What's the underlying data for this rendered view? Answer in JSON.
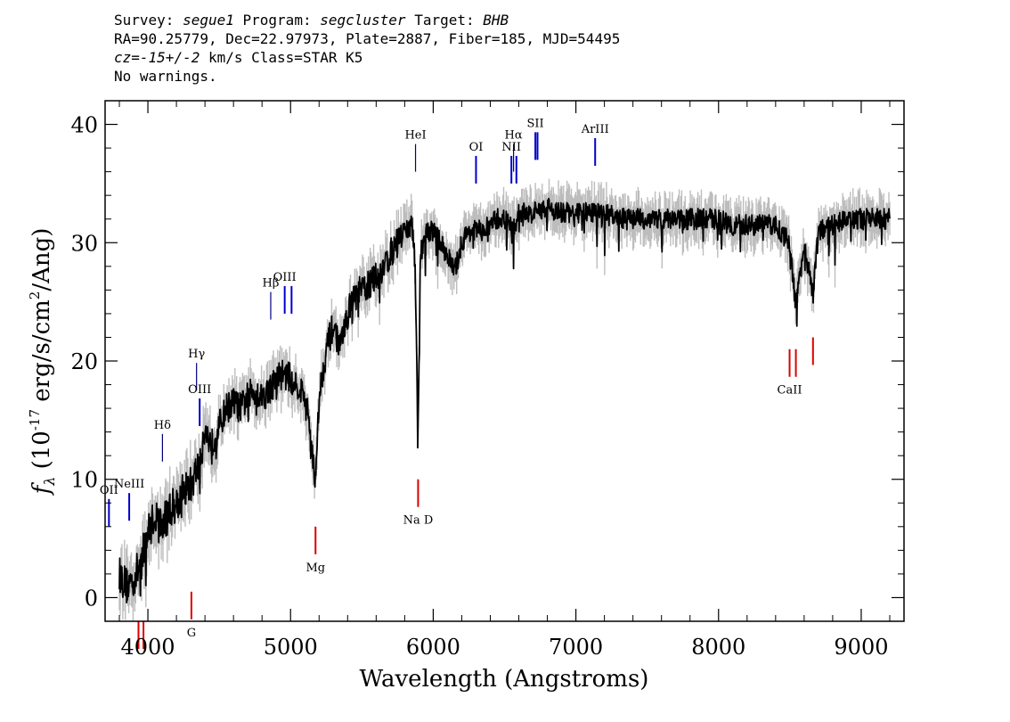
{
  "header": {
    "survey_label": "Survey:",
    "survey": "segue1",
    "program_label": "Program:",
    "program": "segcluster",
    "target_label": "Target:",
    "target": "BHB",
    "line2": "RA=90.25779, Dec=22.97973, Plate=2887, Fiber=185, MJD=54495",
    "cz": "cz=",
    "cz_value": "-15+/-2",
    "cz_rest": " km/s Class=STAR K5",
    "line4": "No warnings."
  },
  "chart_data": {
    "type": "line",
    "xlabel": "Wavelength (Angstroms)",
    "ylabel": {
      "f": "f",
      "sub": "λ",
      "pre": " (10",
      "exp": "-17",
      "mid": " erg/s/cm",
      "exp2": "2",
      "post": "/Ang)"
    },
    "xlim": [
      3700,
      9300
    ],
    "ylim": [
      -2,
      42
    ],
    "xticks": [
      4000,
      5000,
      6000,
      7000,
      8000,
      9000
    ],
    "yticks": [
      0,
      10,
      20,
      30,
      40
    ],
    "colors": {
      "spectrum": "#000000",
      "error": "#bdbdbd",
      "emission": "#0000cc",
      "absorption": "#dd0000",
      "balmer": "#000080"
    },
    "series": [
      {
        "values": [
          [
            3800,
            2
          ],
          [
            3850,
            1
          ],
          [
            3900,
            1.5
          ],
          [
            3950,
            3
          ],
          [
            4000,
            5.5
          ],
          [
            4050,
            7
          ],
          [
            4100,
            6
          ],
          [
            4150,
            7.5
          ],
          [
            4200,
            8
          ],
          [
            4250,
            9
          ],
          [
            4300,
            9.5
          ],
          [
            4350,
            11
          ],
          [
            4400,
            14
          ],
          [
            4450,
            13
          ],
          [
            4500,
            14.5
          ],
          [
            4550,
            16
          ],
          [
            4600,
            16.5
          ],
          [
            4650,
            16
          ],
          [
            4700,
            17
          ],
          [
            4750,
            17.5
          ],
          [
            4800,
            17
          ],
          [
            4850,
            17.5
          ],
          [
            4900,
            18.5
          ],
          [
            4950,
            19
          ],
          [
            5000,
            18.5
          ],
          [
            5050,
            18
          ],
          [
            5100,
            17
          ],
          [
            5150,
            13
          ],
          [
            5175,
            9.5
          ],
          [
            5200,
            17
          ],
          [
            5250,
            21
          ],
          [
            5300,
            23
          ],
          [
            5350,
            21
          ],
          [
            5400,
            24
          ],
          [
            5450,
            25.5
          ],
          [
            5500,
            26
          ],
          [
            5550,
            26.5
          ],
          [
            5600,
            27
          ],
          [
            5650,
            28
          ],
          [
            5700,
            29
          ],
          [
            5750,
            30
          ],
          [
            5800,
            31
          ],
          [
            5850,
            31.5
          ],
          [
            5875,
            28
          ],
          [
            5893,
            13
          ],
          [
            5910,
            29
          ],
          [
            5950,
            31
          ],
          [
            6000,
            31
          ],
          [
            6050,
            30
          ],
          [
            6100,
            29
          ],
          [
            6150,
            27.5
          ],
          [
            6200,
            30
          ],
          [
            6250,
            31
          ],
          [
            6300,
            31
          ],
          [
            6350,
            31
          ],
          [
            6400,
            31.5
          ],
          [
            6450,
            32
          ],
          [
            6500,
            32
          ],
          [
            6563,
            31
          ],
          [
            6600,
            32.5
          ],
          [
            6700,
            32.5
          ],
          [
            6800,
            33
          ],
          [
            6900,
            32.5
          ],
          [
            7000,
            32.5
          ],
          [
            7100,
            32.5
          ],
          [
            7200,
            32.5
          ],
          [
            7300,
            32
          ],
          [
            7400,
            32
          ],
          [
            7500,
            32
          ],
          [
            7600,
            32
          ],
          [
            7700,
            32
          ],
          [
            7800,
            32
          ],
          [
            7900,
            32
          ],
          [
            8000,
            32
          ],
          [
            8100,
            31.5
          ],
          [
            8200,
            31.5
          ],
          [
            8300,
            31.5
          ],
          [
            8400,
            31.5
          ],
          [
            8498,
            30
          ],
          [
            8542,
            24.5
          ],
          [
            8600,
            30
          ],
          [
            8662,
            25.5
          ],
          [
            8700,
            31
          ],
          [
            8800,
            31.5
          ],
          [
            8900,
            32
          ],
          [
            9000,
            32
          ],
          [
            9100,
            32
          ],
          [
            9200,
            32
          ]
        ]
      }
    ],
    "emission_lines": [
      {
        "label": "OII",
        "wavelength": 3727,
        "y": 6
      },
      {
        "label": "NeIII",
        "wavelength": 3869,
        "y": 6.5
      },
      {
        "label": "Hδ",
        "wavelength": 4102,
        "y": 11.5
      },
      {
        "label": "Hγ",
        "wavelength": 4341,
        "y": 17.5
      },
      {
        "label": "OIII",
        "wavelength": 4363,
        "y": 14.5
      },
      {
        "label": "Hβ",
        "wavelength": 4861,
        "y": 23.5
      },
      {
        "label": "OIII",
        "wavelength": 4959,
        "y": 24
      },
      {
        "label": "",
        "wavelength": 5007,
        "y": 24
      },
      {
        "label": "HeI",
        "wavelength": 5876,
        "y": 36
      },
      {
        "label": "OI",
        "wavelength": 6300,
        "y": 35
      },
      {
        "label": "NII",
        "wavelength": 6548,
        "y": 35
      },
      {
        "label": "Hα",
        "wavelength": 6563,
        "y": 36
      },
      {
        "label": "",
        "wavelength": 6583,
        "y": 35
      },
      {
        "label": "SII",
        "wavelength": 6716,
        "y": 37
      },
      {
        "label": "",
        "wavelength": 6731,
        "y": 37
      },
      {
        "label": "ArIII",
        "wavelength": 7135,
        "y": 36.5
      }
    ],
    "absorption_lines": [
      {
        "label": "",
        "wavelength": 3934,
        "y": -2
      },
      {
        "label": "",
        "wavelength": 3969,
        "y": -2
      },
      {
        "label": "G",
        "wavelength": 4305,
        "y": 0.5
      },
      {
        "label": "Mg",
        "wavelength": 5175,
        "y": 6
      },
      {
        "label": "Na D",
        "wavelength": 5894,
        "y": 10
      },
      {
        "label": "CaII",
        "wavelength": 8498,
        "y": 21
      },
      {
        "label": "",
        "wavelength": 8542,
        "y": 21
      },
      {
        "label": "",
        "wavelength": 8662,
        "y": 22
      }
    ]
  }
}
